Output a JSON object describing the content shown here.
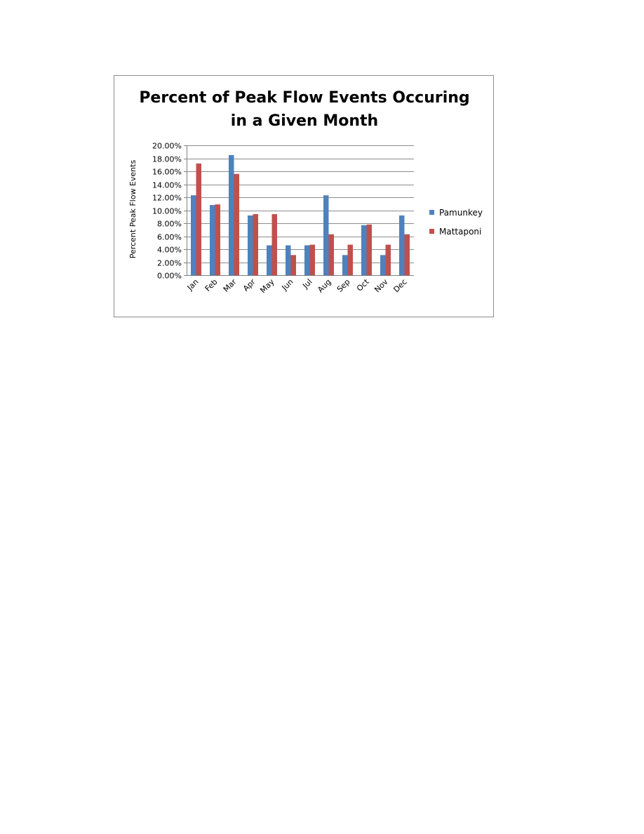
{
  "chart_data": {
    "type": "bar",
    "title": "Percent of Peak Flow Events Occuring in a Given Month",
    "title_lines": [
      "Percent of Peak Flow Events Occuring",
      "in a Given Month"
    ],
    "xlabel": "",
    "ylabel": "Percent Peak Flow  Events",
    "ylim": [
      0,
      20
    ],
    "yticks": [
      "0.00%",
      "2.00%",
      "4.00%",
      "6.00%",
      "8.00%",
      "10.00%",
      "12.00%",
      "14.00%",
      "16.00%",
      "18.00%",
      "20.00%"
    ],
    "categories": [
      "Jan",
      "Feb",
      "Mar",
      "Apr",
      "May",
      "Jun",
      "Jul",
      "Aug",
      "Sep",
      "Oct",
      "Nov",
      "Dec"
    ],
    "series": [
      {
        "name": "Pamunkey",
        "color": "#4f81bd",
        "values": [
          12.3,
          10.8,
          18.5,
          9.2,
          4.6,
          4.6,
          4.6,
          12.3,
          3.1,
          7.7,
          3.1,
          9.2
        ]
      },
      {
        "name": "Mattaponi",
        "color": "#c0504d",
        "values": [
          17.2,
          10.9,
          15.6,
          9.4,
          9.4,
          3.1,
          4.7,
          6.3,
          4.7,
          7.8,
          4.7,
          6.3
        ]
      }
    ],
    "grid": true,
    "legend_position": "right"
  }
}
